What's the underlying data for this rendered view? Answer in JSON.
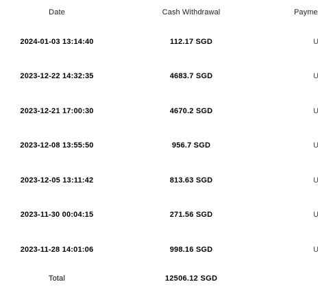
{
  "columns": {
    "date": "Date",
    "cash": "Cash Withdrawal",
    "payment": "Payme"
  },
  "rows": [
    {
      "date": "2024-01-03 13:14:40",
      "cash": "112.17 SGD",
      "payment": "U"
    },
    {
      "date": "2023-12-22 14:32:35",
      "cash": "4683.7 SGD",
      "payment": "U"
    },
    {
      "date": "2023-12-21 17:00:30",
      "cash": "4670.2 SGD",
      "payment": "U"
    },
    {
      "date": "2023-12-08 13:55:50",
      "cash": "956.7 SGD",
      "payment": "U"
    },
    {
      "date": "2023-12-05 13:11:42",
      "cash": "813.63 SGD",
      "payment": "U"
    },
    {
      "date": "2023-11-30 00:04:15",
      "cash": "271.56 SGD",
      "payment": "U"
    },
    {
      "date": "2023-11-28 14:01:06",
      "cash": "998.16 SGD",
      "payment": "U"
    }
  ],
  "total": {
    "label": "Total",
    "cash": "12506.12 SGD"
  }
}
